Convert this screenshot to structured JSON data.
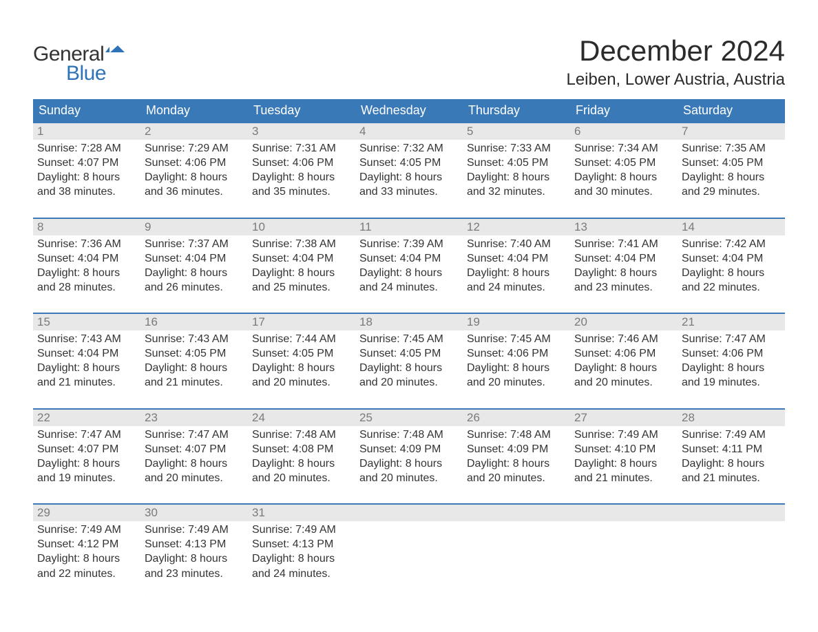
{
  "logo": {
    "word1": "General",
    "word2": "Blue",
    "accent_color": "#2f72b8"
  },
  "title": "December 2024",
  "location": "Leiben, Lower Austria, Austria",
  "colors": {
    "header_bg": "#3a79b7",
    "header_text": "#ffffff",
    "daynum_bg": "#e8e8e8",
    "daynum_text": "#7a7a7a",
    "body_text": "#333333",
    "row_border": "#3a79b7",
    "page_bg": "#ffffff"
  },
  "typography": {
    "title_fontsize": 42,
    "location_fontsize": 24,
    "weekday_fontsize": 18,
    "daynum_fontsize": 17,
    "body_fontsize": 16
  },
  "weekdays": [
    "Sunday",
    "Monday",
    "Tuesday",
    "Wednesday",
    "Thursday",
    "Friday",
    "Saturday"
  ],
  "labels": {
    "sunrise": "Sunrise:",
    "sunset": "Sunset:",
    "daylight": "Daylight:"
  },
  "weeks": [
    [
      {
        "n": "1",
        "sunrise": "7:28 AM",
        "sunset": "4:07 PM",
        "daylight_l1": "8 hours",
        "daylight_l2": "and 38 minutes."
      },
      {
        "n": "2",
        "sunrise": "7:29 AM",
        "sunset": "4:06 PM",
        "daylight_l1": "8 hours",
        "daylight_l2": "and 36 minutes."
      },
      {
        "n": "3",
        "sunrise": "7:31 AM",
        "sunset": "4:06 PM",
        "daylight_l1": "8 hours",
        "daylight_l2": "and 35 minutes."
      },
      {
        "n": "4",
        "sunrise": "7:32 AM",
        "sunset": "4:05 PM",
        "daylight_l1": "8 hours",
        "daylight_l2": "and 33 minutes."
      },
      {
        "n": "5",
        "sunrise": "7:33 AM",
        "sunset": "4:05 PM",
        "daylight_l1": "8 hours",
        "daylight_l2": "and 32 minutes."
      },
      {
        "n": "6",
        "sunrise": "7:34 AM",
        "sunset": "4:05 PM",
        "daylight_l1": "8 hours",
        "daylight_l2": "and 30 minutes."
      },
      {
        "n": "7",
        "sunrise": "7:35 AM",
        "sunset": "4:05 PM",
        "daylight_l1": "8 hours",
        "daylight_l2": "and 29 minutes."
      }
    ],
    [
      {
        "n": "8",
        "sunrise": "7:36 AM",
        "sunset": "4:04 PM",
        "daylight_l1": "8 hours",
        "daylight_l2": "and 28 minutes."
      },
      {
        "n": "9",
        "sunrise": "7:37 AM",
        "sunset": "4:04 PM",
        "daylight_l1": "8 hours",
        "daylight_l2": "and 26 minutes."
      },
      {
        "n": "10",
        "sunrise": "7:38 AM",
        "sunset": "4:04 PM",
        "daylight_l1": "8 hours",
        "daylight_l2": "and 25 minutes."
      },
      {
        "n": "11",
        "sunrise": "7:39 AM",
        "sunset": "4:04 PM",
        "daylight_l1": "8 hours",
        "daylight_l2": "and 24 minutes."
      },
      {
        "n": "12",
        "sunrise": "7:40 AM",
        "sunset": "4:04 PM",
        "daylight_l1": "8 hours",
        "daylight_l2": "and 24 minutes."
      },
      {
        "n": "13",
        "sunrise": "7:41 AM",
        "sunset": "4:04 PM",
        "daylight_l1": "8 hours",
        "daylight_l2": "and 23 minutes."
      },
      {
        "n": "14",
        "sunrise": "7:42 AM",
        "sunset": "4:04 PM",
        "daylight_l1": "8 hours",
        "daylight_l2": "and 22 minutes."
      }
    ],
    [
      {
        "n": "15",
        "sunrise": "7:43 AM",
        "sunset": "4:04 PM",
        "daylight_l1": "8 hours",
        "daylight_l2": "and 21 minutes."
      },
      {
        "n": "16",
        "sunrise": "7:43 AM",
        "sunset": "4:05 PM",
        "daylight_l1": "8 hours",
        "daylight_l2": "and 21 minutes."
      },
      {
        "n": "17",
        "sunrise": "7:44 AM",
        "sunset": "4:05 PM",
        "daylight_l1": "8 hours",
        "daylight_l2": "and 20 minutes."
      },
      {
        "n": "18",
        "sunrise": "7:45 AM",
        "sunset": "4:05 PM",
        "daylight_l1": "8 hours",
        "daylight_l2": "and 20 minutes."
      },
      {
        "n": "19",
        "sunrise": "7:45 AM",
        "sunset": "4:06 PM",
        "daylight_l1": "8 hours",
        "daylight_l2": "and 20 minutes."
      },
      {
        "n": "20",
        "sunrise": "7:46 AM",
        "sunset": "4:06 PM",
        "daylight_l1": "8 hours",
        "daylight_l2": "and 20 minutes."
      },
      {
        "n": "21",
        "sunrise": "7:47 AM",
        "sunset": "4:06 PM",
        "daylight_l1": "8 hours",
        "daylight_l2": "and 19 minutes."
      }
    ],
    [
      {
        "n": "22",
        "sunrise": "7:47 AM",
        "sunset": "4:07 PM",
        "daylight_l1": "8 hours",
        "daylight_l2": "and 19 minutes."
      },
      {
        "n": "23",
        "sunrise": "7:47 AM",
        "sunset": "4:07 PM",
        "daylight_l1": "8 hours",
        "daylight_l2": "and 20 minutes."
      },
      {
        "n": "24",
        "sunrise": "7:48 AM",
        "sunset": "4:08 PM",
        "daylight_l1": "8 hours",
        "daylight_l2": "and 20 minutes."
      },
      {
        "n": "25",
        "sunrise": "7:48 AM",
        "sunset": "4:09 PM",
        "daylight_l1": "8 hours",
        "daylight_l2": "and 20 minutes."
      },
      {
        "n": "26",
        "sunrise": "7:48 AM",
        "sunset": "4:09 PM",
        "daylight_l1": "8 hours",
        "daylight_l2": "and 20 minutes."
      },
      {
        "n": "27",
        "sunrise": "7:49 AM",
        "sunset": "4:10 PM",
        "daylight_l1": "8 hours",
        "daylight_l2": "and 21 minutes."
      },
      {
        "n": "28",
        "sunrise": "7:49 AM",
        "sunset": "4:11 PM",
        "daylight_l1": "8 hours",
        "daylight_l2": "and 21 minutes."
      }
    ],
    [
      {
        "n": "29",
        "sunrise": "7:49 AM",
        "sunset": "4:12 PM",
        "daylight_l1": "8 hours",
        "daylight_l2": "and 22 minutes."
      },
      {
        "n": "30",
        "sunrise": "7:49 AM",
        "sunset": "4:13 PM",
        "daylight_l1": "8 hours",
        "daylight_l2": "and 23 minutes."
      },
      {
        "n": "31",
        "sunrise": "7:49 AM",
        "sunset": "4:13 PM",
        "daylight_l1": "8 hours",
        "daylight_l2": "and 24 minutes."
      },
      null,
      null,
      null,
      null
    ]
  ]
}
